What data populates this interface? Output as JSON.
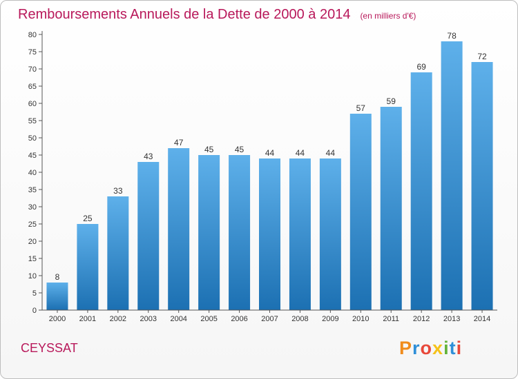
{
  "chart_data": {
    "type": "bar",
    "title": "Remboursements Annuels de la Dette de 2000 à 2014",
    "subtitle": "(en milliers d'€)",
    "categories": [
      "2000",
      "2001",
      "2002",
      "2003",
      "2004",
      "2005",
      "2006",
      "2007",
      "2008",
      "2009",
      "2010",
      "2011",
      "2012",
      "2013",
      "2014"
    ],
    "values": [
      8,
      25,
      33,
      43,
      47,
      45,
      45,
      44,
      44,
      44,
      57,
      59,
      69,
      78,
      72
    ],
    "ylim": [
      0,
      80
    ],
    "ytick_step": 5,
    "xlabel": "",
    "ylabel": "",
    "grid": false
  },
  "footer": {
    "commune": "CEYSSAT",
    "logo_text": "Proxiti"
  },
  "colors": {
    "title": "#b8185a",
    "bar_top": "#5eb0ea",
    "bar_bottom": "#1c70b2",
    "axis": "#555555"
  }
}
